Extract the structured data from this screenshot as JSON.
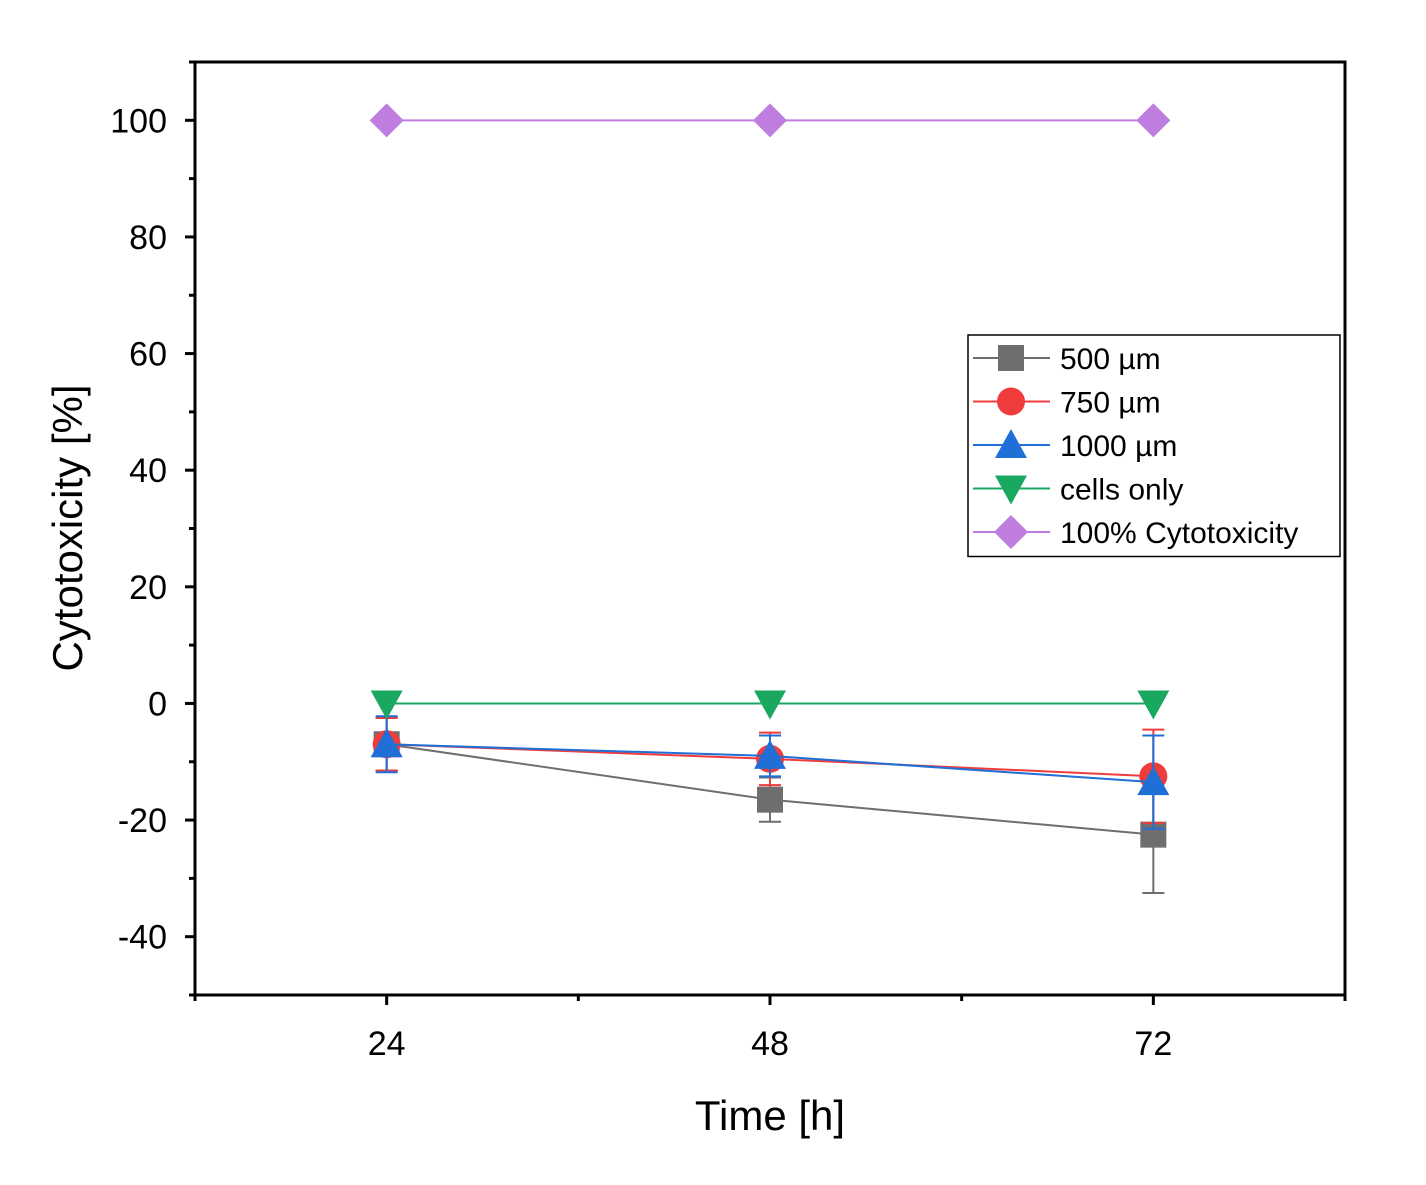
{
  "chart_data": {
    "type": "line",
    "title": "",
    "xlabel": "Time [h]",
    "ylabel": "Cytotoxicity [%]",
    "x": [
      24,
      48,
      72
    ],
    "x_tick_labels": [
      "24",
      "48",
      "72"
    ],
    "xlim": [
      12,
      84
    ],
    "ylim": [
      -50,
      110
    ],
    "y_ticks": [
      -40,
      -20,
      0,
      20,
      40,
      60,
      80,
      100
    ],
    "y_tick_labels": [
      "-40",
      "-20",
      "0",
      "20",
      "40",
      "60",
      "80",
      "100"
    ],
    "legend_position": "right",
    "series": [
      {
        "name": "500 µm",
        "color": "#6e6e6e",
        "marker": "square",
        "values": [
          -7,
          -16.5,
          -22.5
        ],
        "errors": [
          4.5,
          3.8,
          10
        ]
      },
      {
        "name": "750 µm",
        "color": "#f03c3c",
        "marker": "circle",
        "values": [
          -7,
          -9.5,
          -12.5
        ],
        "errors": [
          4.5,
          4.5,
          8
        ]
      },
      {
        "name": "1000 µm",
        "color": "#1f6fd6",
        "marker": "triangle-up",
        "values": [
          -7,
          -9,
          -13.5
        ],
        "errors": [
          4.8,
          3.5,
          8
        ]
      },
      {
        "name": "cells only",
        "color": "#1aa860",
        "marker": "triangle-down",
        "values": [
          0,
          0,
          0
        ],
        "errors": [
          0,
          0,
          0
        ]
      },
      {
        "name": "100% Cytotoxicity",
        "color": "#c07de0",
        "marker": "diamond",
        "values": [
          100,
          100,
          100
        ],
        "errors": [
          0,
          0,
          0
        ]
      }
    ]
  }
}
